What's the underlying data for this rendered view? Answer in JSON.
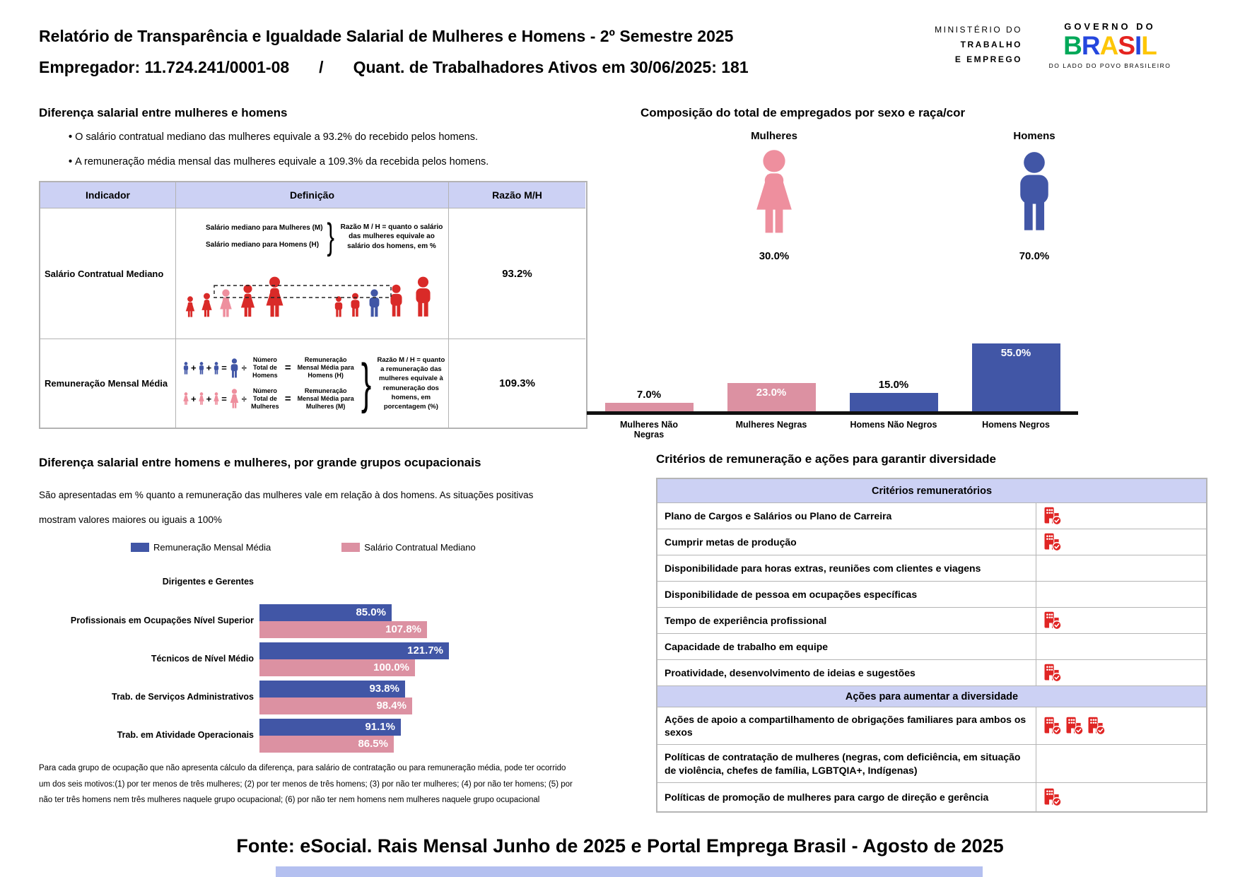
{
  "theme": {
    "blue": "#4156a6",
    "pink": "#dc91a2",
    "light_pink_fig": "#ee8f9e",
    "red": "#d92a28",
    "icon_red": "#e02524",
    "header_purple": "#ccd1f4",
    "strip_blue": "#b4c0f0"
  },
  "icons": {
    "criteria_marker": "building-check-icon",
    "woman_figure": "woman-icon",
    "man_figure": "man-icon"
  },
  "header": {
    "title_line1": "Relatório de Transparência e Igualdade Salarial de Mulheres e Homens - 2º Semestre 2025",
    "employer": "Empregador: 11.724.241/0001-08",
    "separator": "/",
    "active_workers": "Quant. de Trabalhadores Ativos em 30/06/2025: 181",
    "ministry_line1": "MINISTÉRIO DO",
    "ministry_line2": "TRABALHO",
    "ministry_line3": "E EMPREGO",
    "gov_logo_top": "GOVERNO DO",
    "gov_logo_word": "BRASIL",
    "gov_logo_bottom": "DO LADO DO POVO BRASILEIRO"
  },
  "salary_gap": {
    "title": "Diferença salarial entre mulheres e homens",
    "bullets": [
      "O salário contratual mediano das mulheres equivale a 93.2% do recebido pelos homens.",
      "A remuneração média mensal das mulheres equivale a 109.3% da recebida pelos homens."
    ],
    "table_headers": [
      "Indicador",
      "Definição",
      "Razão M/H"
    ],
    "rows": [
      {
        "indicator": "Salário Contratual Mediano",
        "ratio": "93.2%"
      },
      {
        "indicator": "Remuneração Mensal Média",
        "ratio": "109.3%"
      }
    ],
    "row1_diagram": {
      "line1": "Salário mediano para Mulheres (M)",
      "line2": "Salário mediano para Homens (H)",
      "brace": "}",
      "note": "Razão M / H = quanto o salário das mulheres equivale ao salário dos homens, em %"
    },
    "row2_diagram": {
      "plus": "+",
      "equals": "=",
      "divide": "÷",
      "brace": "}",
      "men_total": "Número Total de Homens",
      "men_rem": "Remuneração Mensal Média para Homens (H)",
      "women_total": "Número Total de Mulheres",
      "women_rem": "Remuneração Mensal Média para Mulheres (M)",
      "note": "Razão M / H = quanto a remuneração das mulheres equivale à remuneração dos homens, em porcentagem (%)"
    }
  },
  "composition": {
    "title": "Composição do total de empregados por sexo e raça/cor"
  },
  "occupations": {
    "title": "Diferença salarial entre homens e mulheres, por grande grupos ocupacionais",
    "subtitle": "São apresentadas em % quanto a remuneração das mulheres vale em relação à dos homens. As situações positivas mostram valores maiores ou iguais a 100%",
    "footnote": "Para cada grupo de ocupação que não apresenta cálculo da diferença, para salário de contratação ou para remuneração média, pode ter ocorrido um dos seis motivos:(1) por ter menos de três mulheres; (2) por ter menos de três homens; (3) por não ter mulheres; (4) por não ter homens; (5) por não ter três homens nem três mulheres naquele grupo ocupacional; (6) por não ter nem homens nem mulheres naquele grupo ocupacional"
  },
  "criteria": {
    "title": "Critérios de remuneração e ações para garantir diversidade",
    "sections": [
      {
        "header": "Critérios remuneratórios",
        "rows": [
          {
            "label": "Plano de Cargos e Salários ou Plano de Carreira",
            "icons": 1,
            "h": 37
          },
          {
            "label": "Cumprir metas de produção",
            "icons": 1,
            "h": 37
          },
          {
            "label": "Disponibilidade para horas extras, reuniões com clientes e viagens",
            "icons": 0,
            "h": 37
          },
          {
            "label": "Disponibilidade de pessoa em ocupações específicas",
            "icons": 0,
            "h": 37
          },
          {
            "label": "Tempo de experiência profissional",
            "icons": 1,
            "h": 37
          },
          {
            "label": "Capacidade de trabalho em equipe",
            "icons": 0,
            "h": 37
          },
          {
            "label": "Proatividade, desenvolvimento de ideias e sugestões",
            "icons": 1,
            "h": 37
          }
        ]
      },
      {
        "header": "Ações para aumentar a diversidade",
        "rows": [
          {
            "label": "Ações de apoio a compartilhamento de obrigações familiares para ambos os sexos",
            "icons": 3,
            "h": 53
          },
          {
            "label": "Políticas de contratação de mulheres (negras, com deficiência, em situação de violência, chefes de família, LGBTQIA+, Indígenas)",
            "icons": 0,
            "h": 54
          },
          {
            "label": "Políticas de promoção de mulheres para cargo de direção e gerência",
            "icons": 1,
            "h": 40
          }
        ]
      }
    ]
  },
  "footer": {
    "source": "Fonte: eSocial. Rais Mensal Junho de 2025 e Portal Emprega Brasil - Agosto de 2025"
  },
  "chart_data": [
    {
      "id": "sex-race-composition",
      "type": "bar",
      "title": "Composição do total de empregados por sexo e raça/cor",
      "sex_totals": [
        {
          "label": "Mulheres",
          "value": 30.0,
          "display": "30.0%"
        },
        {
          "label": "Homens",
          "value": 70.0,
          "display": "70.0%"
        }
      ],
      "categories": [
        "Mulheres Não Negras",
        "Mulheres Negras",
        "Homens Não Negros",
        "Homens Negros"
      ],
      "values": [
        7.0,
        23.0,
        15.0,
        55.0
      ],
      "displays": [
        "7.0%",
        "23.0%",
        "15.0%",
        "55.0%"
      ],
      "colors": [
        "pink",
        "pink",
        "blue",
        "blue"
      ],
      "ylim": [
        0,
        60
      ],
      "grid": false,
      "legend": "none"
    },
    {
      "id": "occupational-groups",
      "type": "bar-horizontal",
      "categories": [
        "Dirigentes e Gerentes",
        "Profissionais em Ocupações Nível Superior",
        "Técnicos de Nível Médio",
        "Trab. de Serviços Administrativos",
        "Trab. em Atividade Operacionais"
      ],
      "series": [
        {
          "name": "Remuneração Mensal Média",
          "color": "blue",
          "values": [
            null,
            85.0,
            121.7,
            93.8,
            91.1
          ],
          "displays": [
            "",
            "85.0%",
            "121.7%",
            "93.8%",
            "91.1%"
          ]
        },
        {
          "name": "Salário Contratual Mediano",
          "color": "pink",
          "values": [
            null,
            107.8,
            100.0,
            98.4,
            86.5
          ],
          "displays": [
            "",
            "107.8%",
            "100.0%",
            "98.4%",
            "86.5%"
          ]
        }
      ],
      "xlim": [
        0,
        130
      ],
      "grid": false,
      "legend": "top"
    }
  ]
}
